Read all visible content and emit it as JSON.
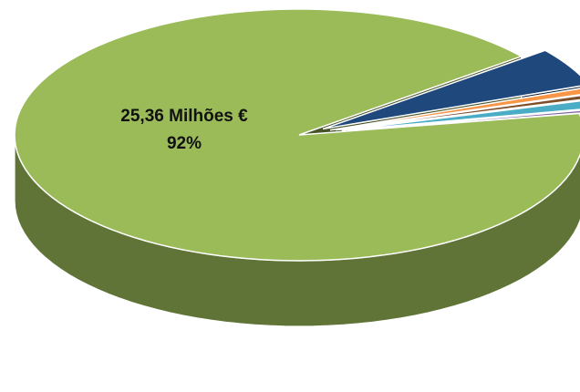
{
  "chart_data": {
    "type": "pie",
    "style": "3d-exploded",
    "slices": [
      {
        "value": 92,
        "color": "#9bbb59",
        "label_lines": [
          "25,36 Milhões €",
          "92%"
        ]
      },
      {
        "value": 5.0,
        "color": "#1f497d",
        "label_lines": []
      },
      {
        "value": 0.8,
        "color": "#f79646",
        "label_lines": []
      },
      {
        "value": 0.6,
        "color": "#7f4f2a",
        "label_lines": []
      },
      {
        "value": 1.2,
        "color": "#4bacc6",
        "label_lines": []
      },
      {
        "value": 0.4,
        "color": "#8064a2",
        "label_lines": []
      }
    ],
    "title": "",
    "legend": "none"
  }
}
